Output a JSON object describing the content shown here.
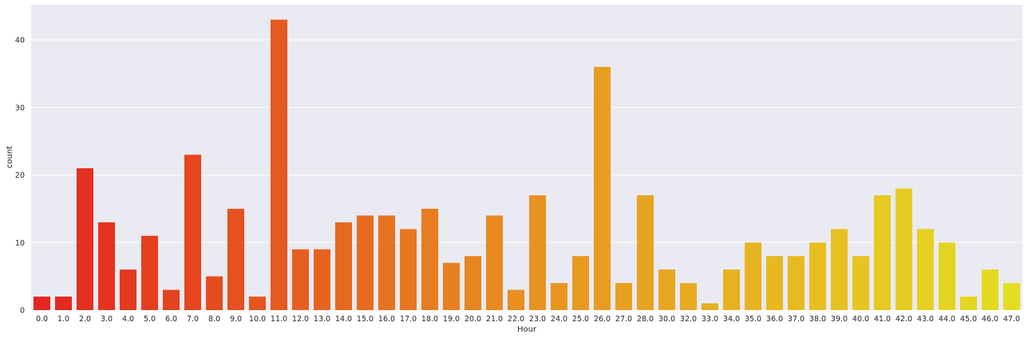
{
  "chart_data": {
    "type": "bar",
    "xlabel": "Hour",
    "ylabel": "count",
    "ylim": [
      0,
      45.2
    ],
    "yticks": [
      0,
      10,
      20,
      30,
      40
    ],
    "grid": true,
    "background": "#eaeaf2",
    "palette": [
      "#e3261f",
      "#e89120",
      "#e5dd22"
    ],
    "categories": [
      "0.0",
      "1.0",
      "2.0",
      "3.0",
      "4.0",
      "5.0",
      "6.0",
      "7.0",
      "8.0",
      "9.0",
      "10.0",
      "11.0",
      "12.0",
      "13.0",
      "14.0",
      "15.0",
      "16.0",
      "17.0",
      "18.0",
      "19.0",
      "20.0",
      "21.0",
      "22.0",
      "23.0",
      "24.0",
      "25.0",
      "26.0",
      "27.0",
      "28.0",
      "30.0",
      "32.0",
      "33.0",
      "34.0",
      "35.0",
      "36.0",
      "37.0",
      "38.0",
      "39.0",
      "40.0",
      "41.0",
      "42.0",
      "43.0",
      "44.0",
      "45.0",
      "46.0",
      "47.0"
    ],
    "values": [
      2,
      2,
      21,
      13,
      6,
      11,
      3,
      23,
      5,
      15,
      2,
      43,
      9,
      9,
      13,
      14,
      14,
      12,
      15,
      7,
      8,
      14,
      3,
      17,
      4,
      8,
      36,
      4,
      17,
      6,
      4,
      1,
      6,
      10,
      8,
      8,
      10,
      12,
      8,
      17,
      18,
      12,
      10,
      2,
      6,
      4
    ]
  }
}
